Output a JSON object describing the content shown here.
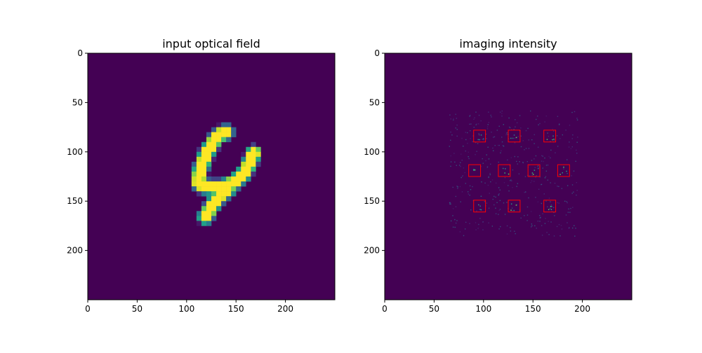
{
  "figure": {
    "background": "#ffffff",
    "field_color": "#440154"
  },
  "chart_data": [
    {
      "type": "heatmap",
      "title": "input optical field",
      "colormap": "viridis",
      "xlim": [
        0,
        250
      ],
      "ylim": [
        250,
        0
      ],
      "xticks": [
        0,
        50,
        100,
        150,
        200
      ],
      "yticks": [
        0,
        50,
        100,
        150,
        200
      ],
      "grid": false,
      "cell_size": 5,
      "glyph_strokes": [
        [
          [
            140,
            80
          ],
          [
            136,
            81
          ],
          [
            130,
            86
          ],
          [
            125,
            93
          ],
          [
            120,
            102
          ],
          [
            116,
            112
          ],
          [
            113,
            122
          ],
          [
            112,
            131
          ],
          [
            117,
            135
          ],
          [
            126,
            136
          ],
          [
            136,
            136
          ],
          [
            148,
            131
          ],
          [
            157,
            123
          ],
          [
            163,
            113
          ],
          [
            168,
            101
          ]
        ],
        [
          [
            142,
            138
          ],
          [
            133,
            145
          ],
          [
            127,
            153
          ],
          [
            122,
            161
          ],
          [
            119,
            166
          ]
        ]
      ]
    },
    {
      "type": "heatmap",
      "title": "imaging intensity",
      "colormap": "viridis",
      "xlim": [
        0,
        250
      ],
      "ylim": [
        250,
        0
      ],
      "xticks": [
        0,
        50,
        100,
        150,
        200
      ],
      "yticks": [
        0,
        50,
        100,
        150,
        200
      ],
      "grid": false,
      "detector_color": "#ff0000",
      "detector_size": 12,
      "detector_centers": [
        [
          96,
          84
        ],
        [
          131,
          84
        ],
        [
          167,
          84
        ],
        [
          91,
          119
        ],
        [
          121,
          119
        ],
        [
          151,
          119
        ],
        [
          181,
          119
        ],
        [
          96,
          155
        ],
        [
          131,
          155
        ],
        [
          167,
          155
        ]
      ],
      "speckle_extent": [
        65,
        195,
        58,
        185
      ]
    }
  ]
}
